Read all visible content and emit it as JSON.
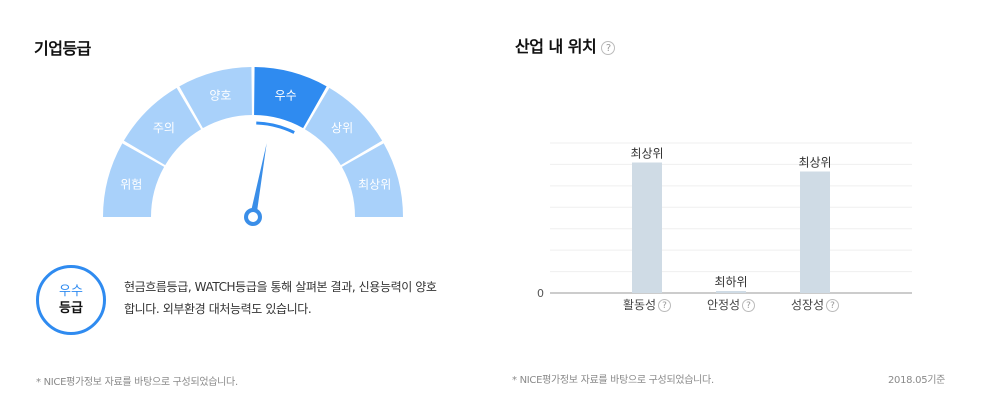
{
  "left": {
    "title": "기업등급",
    "gauge": {
      "segments": [
        "위험",
        "주의",
        "양호",
        "우수",
        "상위",
        "최상위"
      ],
      "active_index": 3,
      "needle_value": 3.35,
      "colors": {
        "inactive": "#a9d1fa",
        "active": "#2f8bf0",
        "needle": "#3a8ee8"
      }
    },
    "badge": {
      "top": "우수",
      "bottom": "등급"
    },
    "description_lines": [
      "현금흐름등급, WATCH등급을 통해 살펴본 결과, 신용능력이 양호",
      "합니다. 외부환경 대처능력도 있습니다."
    ],
    "footnote": "* NICE평가정보 자료를 바탕으로 구성되었습니다."
  },
  "right": {
    "title": "산업 내 위치",
    "title_help": "?",
    "footnote": "* NICE평가정보 자료를 바탕으로 구성되었습니다.",
    "date_label": "2018.05기준"
  },
  "chart_data": {
    "type": "bar",
    "title": "산업 내 위치",
    "categories": [
      "활동성",
      "안정성",
      "성장성"
    ],
    "category_help": "?",
    "values": [
      0.87,
      0.0,
      0.81
    ],
    "data_labels": [
      "최상위",
      "최하위",
      "최상위"
    ],
    "ylim": [
      0,
      1
    ],
    "y_ticks": [
      "0"
    ],
    "gridlines": 7,
    "grid": true,
    "bar_color": "#cfdbe5"
  }
}
